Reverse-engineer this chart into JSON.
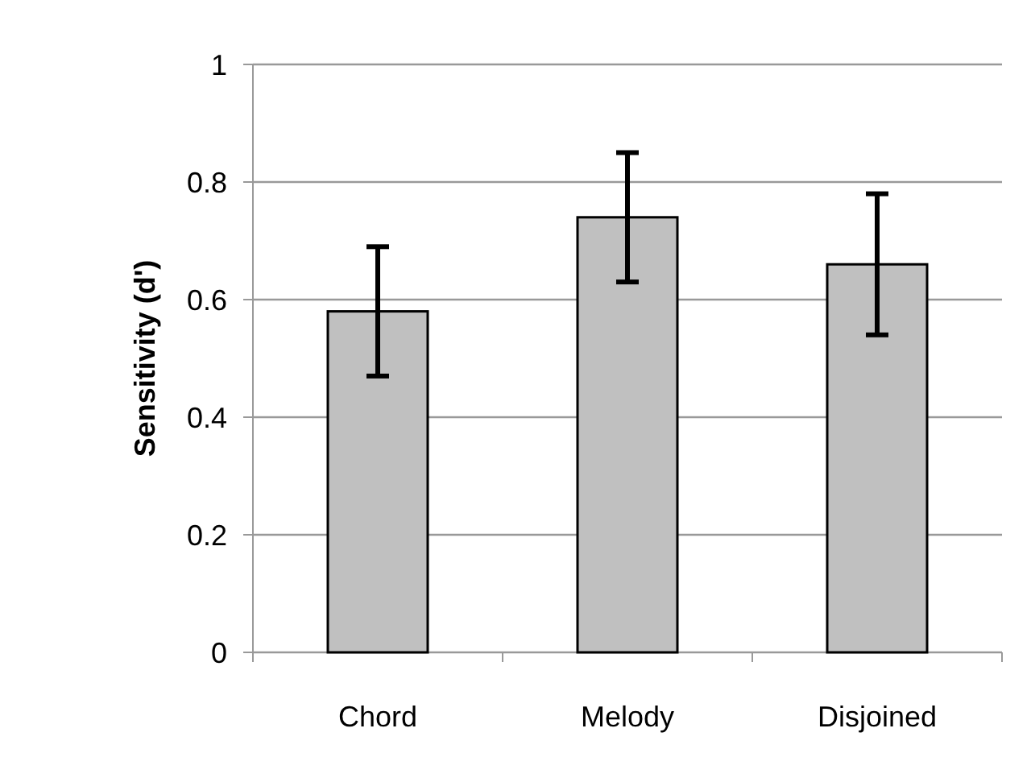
{
  "chart_data": {
    "type": "bar",
    "ylabel": "Sensitivity (d')",
    "categories": [
      "Chord",
      "Melody",
      "Disjoined"
    ],
    "values": [
      0.58,
      0.74,
      0.66
    ],
    "errors": [
      0.11,
      0.11,
      0.12
    ],
    "color": "#c0c0c0",
    "ylim": [
      0,
      1
    ],
    "yticks": [
      0,
      0.2,
      0.4,
      0.6,
      0.8,
      1
    ],
    "grid": "y"
  }
}
